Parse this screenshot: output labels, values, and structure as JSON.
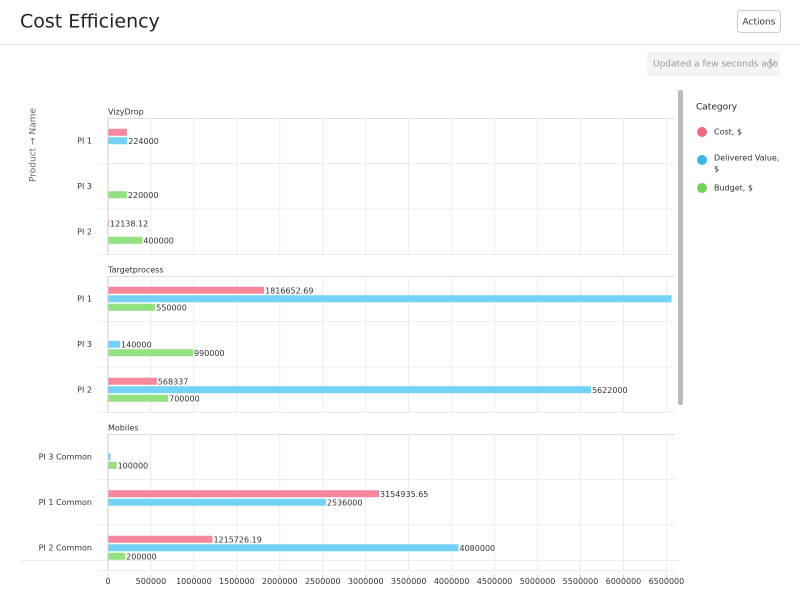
{
  "header": {
    "title": "Cost Efficiency",
    "actions": "Actions",
    "status": "Updated a few seconds ago"
  },
  "chart_data": {
    "type": "bar",
    "orientation": "horizontal",
    "y_axis_label": "Product → Name",
    "legend_title": "Category",
    "series": [
      {
        "name": "Cost, $",
        "color": "#f7889c",
        "legend_color": "#f06a85"
      },
      {
        "name": "Delivered Value, $",
        "color": "#74d2f7",
        "legend_color": "#35b8f0"
      },
      {
        "name": "Budget, $",
        "color": "#93e17f",
        "legend_color": "#6ed656"
      }
    ],
    "facets": [
      {
        "title": "VizyDrop",
        "categories": [
          "PI 1",
          "PI 3",
          "PI 2"
        ],
        "values": [
          [
            220000,
            null,
            12138.12
          ],
          [
            224000,
            null,
            null
          ],
          [
            null,
            220000,
            400000
          ]
        ],
        "value_labels": [
          [
            null,
            null,
            "12138.12"
          ],
          [
            "224000",
            null,
            null
          ],
          [
            null,
            "220000",
            "400000"
          ]
        ]
      },
      {
        "title": "Targetprocess",
        "categories": [
          "PI 1",
          "PI 3",
          "PI 2"
        ],
        "values": [
          [
            1816652.69,
            null,
            568337
          ],
          [
            6560000,
            140000,
            5622000
          ],
          [
            550000,
            990000,
            700000
          ]
        ],
        "value_labels": [
          [
            "1816652.69",
            null,
            "568337"
          ],
          [
            null,
            "140000",
            "5622000"
          ],
          [
            "550000",
            "990000",
            "700000"
          ]
        ]
      },
      {
        "title": "Mobiles",
        "categories": [
          "PI 3 Common",
          "PI 1 Common",
          "PI 2 Common"
        ],
        "values": [
          [
            null,
            3154935.65,
            1215726.19
          ],
          [
            30000,
            2536000,
            4080000
          ],
          [
            100000,
            null,
            200000
          ]
        ],
        "value_labels": [
          [
            null,
            "3154935.65",
            "1215726.19"
          ],
          [
            null,
            "2536000",
            "4080000"
          ],
          [
            "100000",
            null,
            "200000"
          ]
        ]
      }
    ],
    "xlim": [
      0,
      6600000
    ],
    "xticks": [
      0,
      500000,
      1000000,
      1500000,
      2000000,
      2500000,
      3000000,
      3500000,
      4000000,
      4500000,
      5000000,
      5500000,
      6000000,
      6500000
    ],
    "grid": true
  }
}
